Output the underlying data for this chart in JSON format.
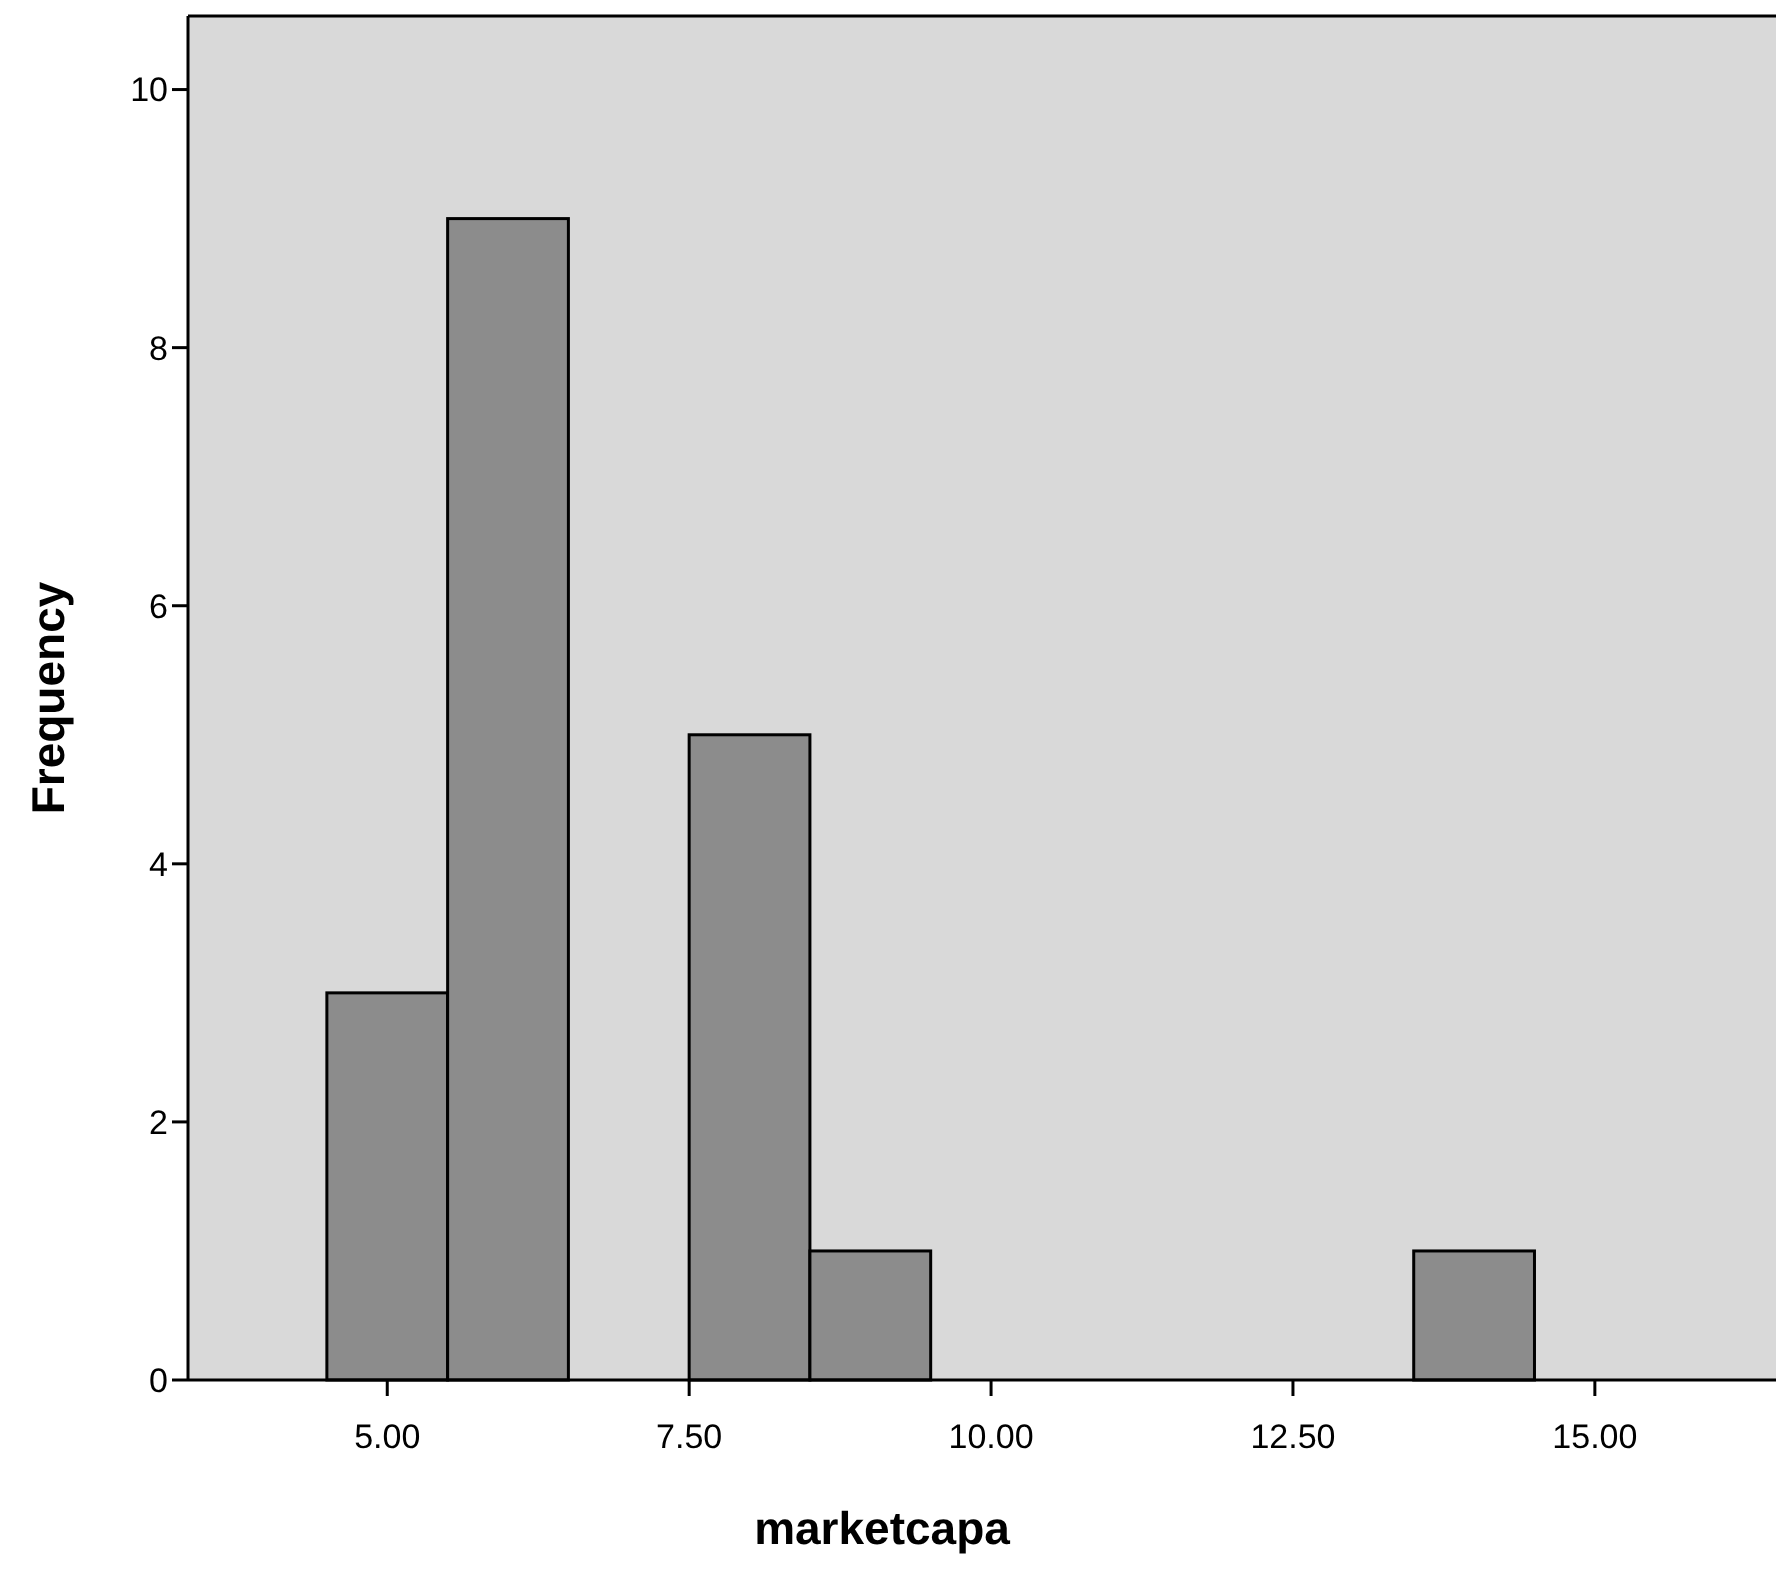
{
  "chart_data": {
    "type": "histogram",
    "xlabel": "marketcapa",
    "ylabel": "Frequency",
    "bins": [
      4.5,
      5.5,
      6.5,
      7.5,
      8.5,
      9.5,
      10.5,
      11.5,
      12.5,
      13.5,
      14.5
    ],
    "values": [
      3,
      9,
      0,
      5,
      1,
      0,
      0,
      0,
      0,
      1
    ],
    "color": "#8c8c8c",
    "xlim": [
      3.35,
      16.5
    ],
    "ylim": [
      0,
      10.57
    ],
    "xticks": [
      {
        "value": 5,
        "label": "5.00"
      },
      {
        "value": 7.5,
        "label": "7.50"
      },
      {
        "value": 10,
        "label": "10.00"
      },
      {
        "value": 12.5,
        "label": "12.50"
      },
      {
        "value": 15,
        "label": "15.00"
      }
    ],
    "yticks": [
      0,
      2,
      4,
      6,
      8,
      10
    ],
    "grid": false
  }
}
